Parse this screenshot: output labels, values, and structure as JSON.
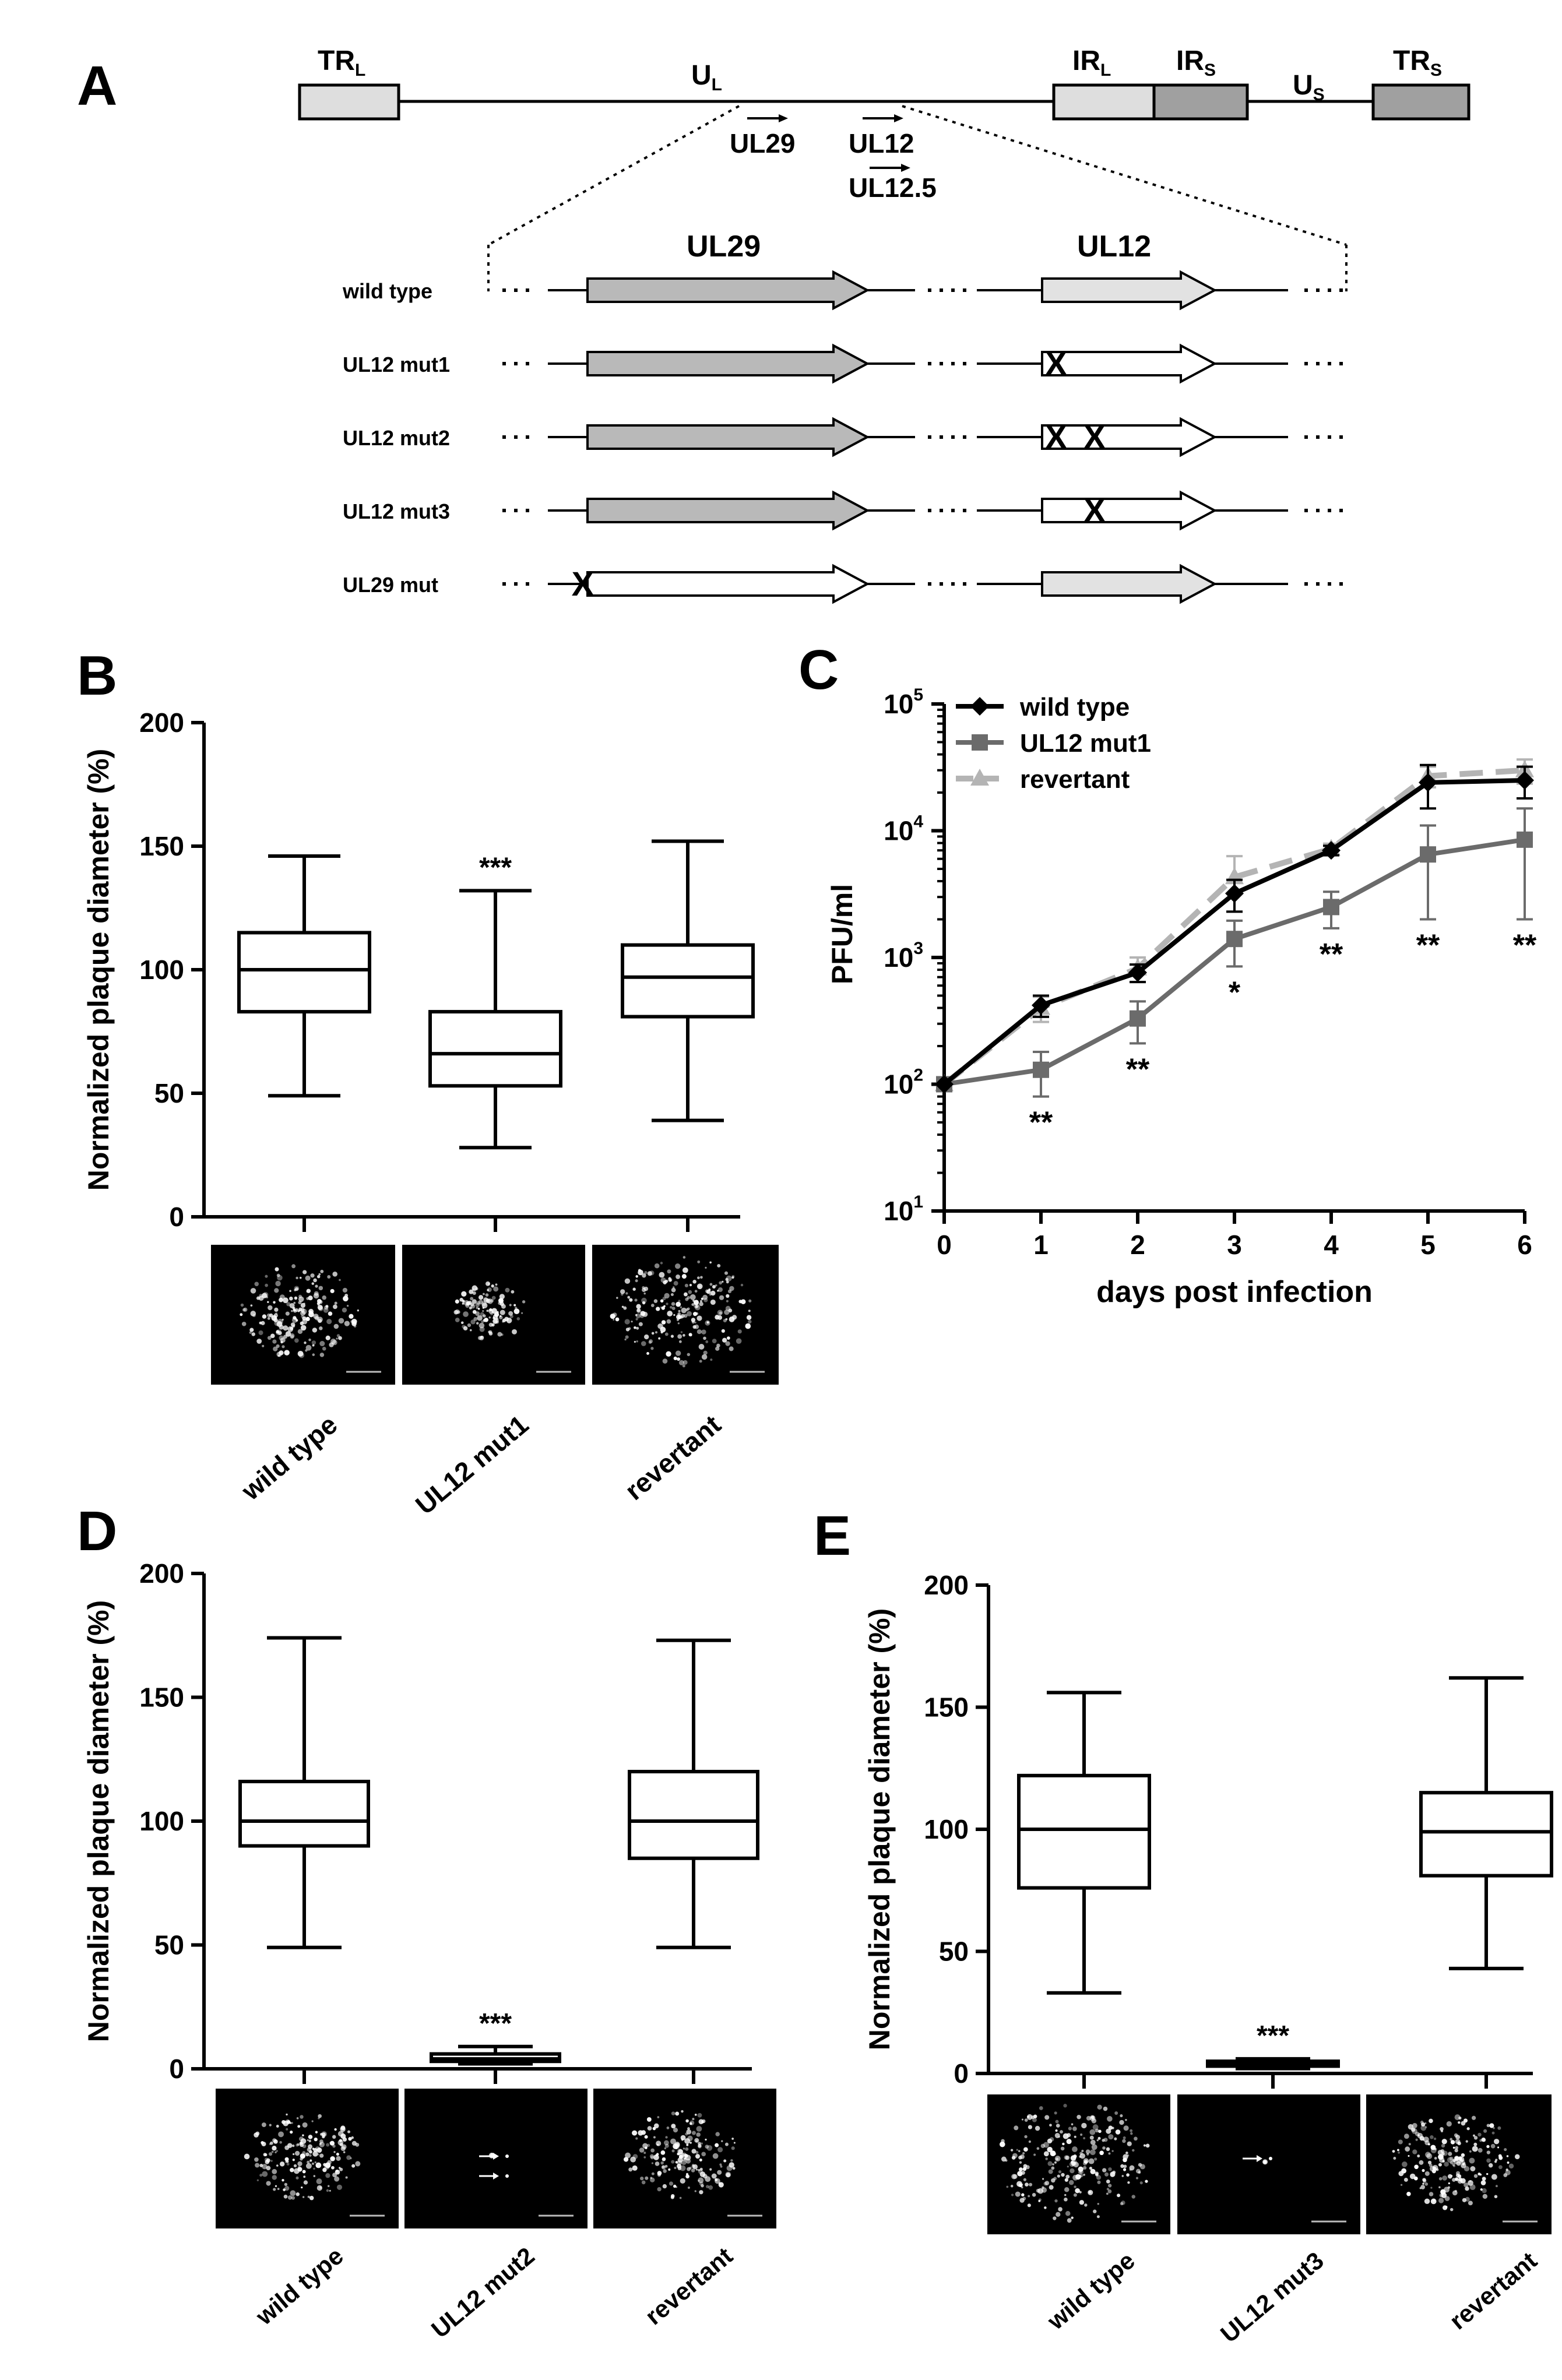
{
  "colors": {
    "black": "#000000",
    "dark_grey": "#6b6b6b",
    "mid_grey": "#b4b4b4",
    "light_grey": "#dedede",
    "arrow_dark": "#b9b9b9",
    "arrow_light": "#e2e2e2"
  },
  "panel_a": {
    "letter": "A",
    "genome": {
      "trl": {
        "main": "TR",
        "sub": "L"
      },
      "ul": {
        "main": "U",
        "sub": "L"
      },
      "irl": {
        "main": "IR",
        "sub": "L"
      },
      "irs": {
        "main": "IR",
        "sub": "S"
      },
      "us": {
        "main": "U",
        "sub": "S"
      },
      "trs": {
        "main": "TR",
        "sub": "S"
      },
      "label_ul29": "UL29",
      "label_ul12": "UL12",
      "label_ul125": "UL12.5"
    },
    "gene_ul29": "UL29",
    "gene_ul12": "UL12",
    "rows": [
      {
        "label": "wild type",
        "ul29": "wt",
        "ul12": "wt",
        "x_marks": []
      },
      {
        "label": "UL12 mut1",
        "ul29": "wt",
        "ul12": "mut",
        "x_marks": [
          "X"
        ]
      },
      {
        "label": "UL12 mut2",
        "ul29": "wt",
        "ul12": "mut",
        "x_marks": [
          "X",
          "X"
        ]
      },
      {
        "label": "UL12 mut3",
        "ul29": "wt",
        "ul12": "mut",
        "x_marks": [
          "X"
        ]
      },
      {
        "label": "UL29 mut",
        "ul29": "mut",
        "ul12": "wt",
        "x_marks": [
          "X"
        ]
      }
    ]
  },
  "panel_b": {
    "letter": "B",
    "chart_data": {
      "type": "box",
      "ylabel": "Normalized  plaque diameter (%)",
      "ylim": [
        0,
        200
      ],
      "yticks": [
        0,
        50,
        100,
        150,
        200
      ],
      "categories": [
        "wild type",
        "UL12 mut1",
        "revertant"
      ],
      "boxes": [
        {
          "min": 49,
          "q1": 83,
          "median": 100,
          "q3": 115,
          "max": 146
        },
        {
          "min": 28,
          "q1": 53,
          "median": 66,
          "q3": 83,
          "max": 132
        },
        {
          "min": 39,
          "q1": 81,
          "median": 97,
          "q3": 110,
          "max": 152
        }
      ],
      "annotations": [
        "",
        "***",
        ""
      ]
    }
  },
  "panel_c": {
    "letter": "C",
    "chart_data": {
      "type": "line",
      "xlabel": "days post infection",
      "ylabel": "PFU/ml",
      "yscale": "log",
      "x": [
        0,
        1,
        2,
        3,
        4,
        5,
        6
      ],
      "ytick_base": "10",
      "ytick_exponents": [
        "1",
        "2",
        "3",
        "4",
        "5"
      ],
      "series": [
        {
          "name": "wild type",
          "color": "#000000",
          "marker": "diamond",
          "dash": "solid",
          "values": [
            100,
            420,
            760,
            3200,
            7000,
            24000,
            25000
          ],
          "err": [
            0,
            80,
            120,
            900,
            600,
            9000,
            7000
          ]
        },
        {
          "name": "UL12 mut1",
          "color": "#6b6b6b",
          "marker": "square",
          "dash": "solid",
          "values": [
            100,
            130,
            330,
            1400,
            2500,
            6500,
            8500
          ],
          "err": [
            0,
            50,
            120,
            550,
            800,
            4500,
            6500
          ]
        },
        {
          "name": "revertant",
          "color": "#b4b4b4",
          "marker": "triangle",
          "dash": "dashed",
          "values": [
            100,
            400,
            820,
            4300,
            7200,
            27000,
            30000
          ],
          "err": [
            0,
            90,
            180,
            2000,
            700,
            5000,
            6500
          ]
        }
      ],
      "annotations": [
        "",
        "**",
        "**",
        "*",
        "**",
        "**",
        "**"
      ]
    }
  },
  "panel_d": {
    "letter": "D",
    "chart_data": {
      "type": "box",
      "ylabel": "Normalized  plaque diameter (%)",
      "ylim": [
        0,
        200
      ],
      "yticks": [
        0,
        50,
        100,
        150,
        200
      ],
      "categories": [
        "wild type",
        "UL12 mut2",
        "revertant"
      ],
      "boxes": [
        {
          "min": 49,
          "q1": 90,
          "median": 100,
          "q3": 116,
          "max": 174
        },
        {
          "min": 2,
          "q1": 3,
          "median": 4,
          "q3": 6,
          "max": 9
        },
        {
          "min": 49,
          "q1": 85,
          "median": 100,
          "q3": 120,
          "max": 173
        }
      ],
      "annotations": [
        "",
        "***",
        ""
      ]
    }
  },
  "panel_e": {
    "letter": "E",
    "chart_data": {
      "type": "box",
      "ylabel": "Normalized  plaque diameter (%)",
      "ylim": [
        0,
        200
      ],
      "yticks": [
        0,
        50,
        100,
        150,
        200
      ],
      "categories": [
        "wild type",
        "UL12 mut3",
        "revertant"
      ],
      "boxes": [
        {
          "min": 33,
          "q1": 76,
          "median": 100,
          "q3": 122,
          "max": 156
        },
        {
          "min": 2,
          "q1": 3,
          "median": 4,
          "q3": 5,
          "max": 6
        },
        {
          "min": 43,
          "q1": 81,
          "median": 99,
          "q3": 115,
          "max": 162
        }
      ],
      "annotations": [
        "",
        "***",
        ""
      ]
    }
  }
}
